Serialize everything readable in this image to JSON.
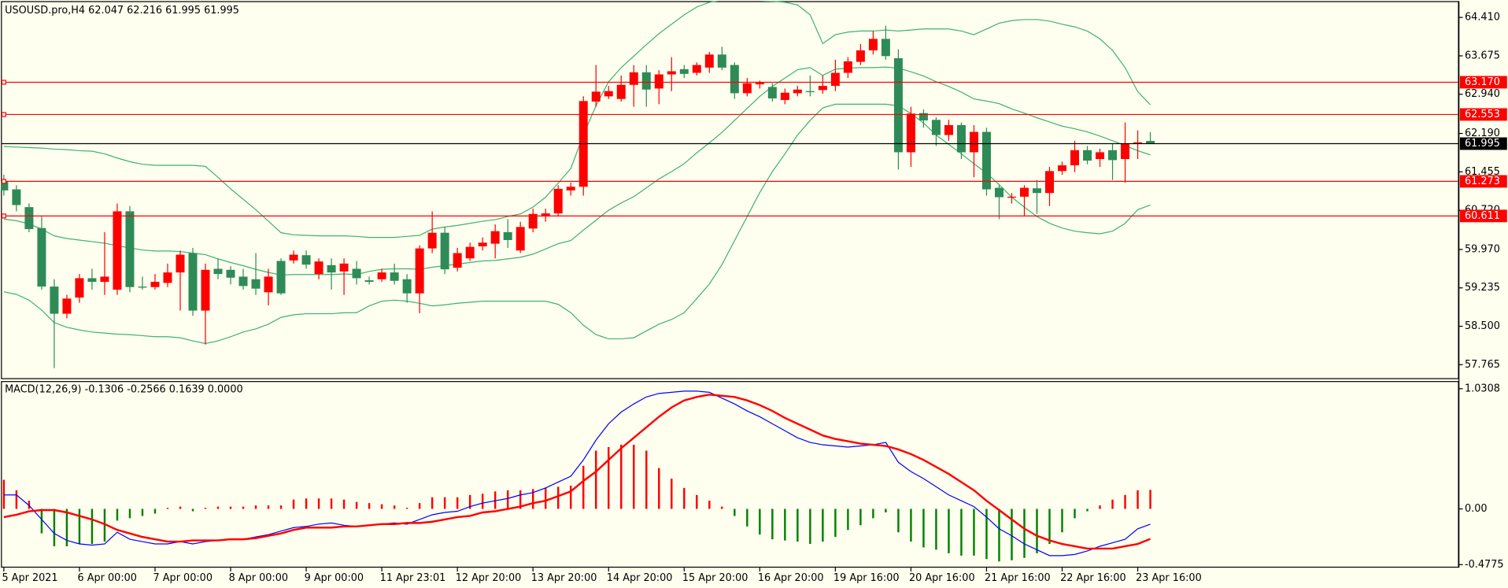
{
  "chart_data": [
    {
      "type": "candlestick",
      "title": "USOUSD.pro,H4  62.047 62.216 61.995 61.995",
      "up_color": "#ff0000",
      "down_color": "#2e8b57",
      "categories": [
        "5 Apr 2021",
        null,
        null,
        null,
        null,
        null,
        "6 Apr 00:00",
        null,
        null,
        null,
        null,
        null,
        "7 Apr 00:00",
        null,
        null,
        null,
        null,
        null,
        "8 Apr 00:00",
        null,
        null,
        null,
        null,
        null,
        "9 Apr 00:00",
        null,
        null,
        null,
        null,
        null,
        "11 Apr 23:01",
        null,
        null,
        null,
        null,
        null,
        "12 Apr 20:00",
        null,
        null,
        null,
        null,
        null,
        "13 Apr 20:00",
        null,
        null,
        null,
        null,
        null,
        "14 Apr 20:00",
        null,
        null,
        null,
        null,
        null,
        "15 Apr 20:00",
        null,
        null,
        null,
        null,
        null,
        "16 Apr 20:00",
        null,
        null,
        null,
        null,
        null,
        "19 Apr 16:00",
        null,
        null,
        null,
        null,
        null,
        "20 Apr 16:00",
        null,
        null,
        null,
        null,
        null,
        "21 Apr 16:00",
        null,
        null,
        null,
        null,
        null,
        "22 Apr 16:00",
        null,
        null,
        null,
        null,
        null,
        "23 Apr 16:00",
        null
      ],
      "open": [
        61.28,
        61.12,
        60.78,
        60.38,
        59.26,
        58.74,
        59.05,
        59.42,
        59.35,
        59.2,
        60.7,
        59.26,
        59.25,
        59.33,
        59.53,
        59.9,
        58.8,
        59.6,
        59.58,
        59.45,
        59.4,
        59.15,
        59.75,
        59.76,
        59.86,
        59.5,
        59.67,
        59.55,
        59.6,
        59.38,
        59.4,
        59.53,
        59.4,
        59.13,
        59.99,
        60.29,
        59.62,
        59.8,
        60.03,
        60.08,
        60.3,
        59.95,
        60.37,
        60.6,
        60.66,
        61.1,
        61.17,
        62.8,
        62.9,
        62.85,
        63.12,
        63.36,
        63.05,
        63.32,
        63.42,
        63.35,
        63.45,
        63.7,
        63.5,
        62.96,
        63.13,
        63.08,
        62.83,
        62.96,
        63.0,
        63.02,
        63.1,
        63.35,
        63.56,
        63.78,
        64.0,
        63.63,
        61.83,
        62.58,
        62.45,
        62.16,
        62.35,
        61.83,
        62.22,
        61.15,
        60.97,
        60.98,
        61.14,
        61.05,
        61.47,
        61.58,
        61.87,
        61.7,
        61.87,
        61.7,
        62.0,
        62.047
      ],
      "high": [
        61.4,
        61.2,
        60.85,
        60.6,
        59.4,
        59.1,
        59.5,
        59.6,
        60.3,
        60.85,
        60.8,
        59.45,
        59.5,
        59.7,
        59.95,
        60.0,
        59.7,
        59.8,
        59.65,
        59.6,
        59.9,
        59.6,
        59.8,
        59.95,
        59.95,
        59.8,
        59.8,
        59.8,
        59.75,
        59.45,
        59.6,
        59.7,
        59.5,
        60.05,
        60.7,
        60.4,
        60.0,
        60.1,
        60.2,
        60.45,
        60.55,
        60.5,
        60.75,
        60.75,
        61.2,
        61.25,
        62.9,
        63.5,
        63.1,
        63.3,
        63.5,
        63.5,
        63.4,
        63.65,
        63.5,
        63.55,
        63.75,
        63.85,
        63.55,
        63.25,
        63.2,
        63.15,
        63.05,
        63.1,
        63.3,
        63.3,
        63.6,
        63.65,
        63.9,
        64.15,
        64.25,
        63.8,
        62.7,
        62.65,
        62.5,
        62.45,
        62.4,
        62.35,
        62.3,
        61.2,
        61.05,
        61.2,
        61.3,
        61.55,
        61.65,
        62.05,
        61.95,
        61.9,
        62.0,
        62.4,
        62.25,
        62.216
      ],
      "low": [
        61.0,
        60.7,
        60.3,
        59.2,
        57.7,
        58.65,
        58.95,
        59.2,
        59.1,
        59.1,
        59.15,
        59.2,
        59.2,
        59.25,
        58.8,
        58.7,
        58.15,
        59.4,
        59.3,
        59.2,
        59.1,
        58.9,
        59.1,
        59.7,
        59.6,
        59.4,
        59.2,
        59.1,
        59.3,
        59.3,
        59.35,
        59.3,
        58.95,
        58.75,
        59.9,
        59.5,
        59.55,
        59.75,
        59.95,
        59.8,
        60.0,
        59.9,
        60.3,
        60.5,
        60.6,
        61.0,
        61.0,
        62.7,
        62.85,
        62.8,
        62.7,
        62.7,
        62.75,
        63.0,
        63.25,
        63.3,
        63.35,
        63.4,
        62.85,
        62.9,
        63.05,
        62.8,
        62.75,
        62.9,
        62.9,
        62.95,
        63.0,
        63.25,
        63.5,
        63.7,
        63.6,
        61.5,
        61.55,
        62.3,
        61.95,
        62.05,
        61.7,
        61.35,
        61.0,
        60.55,
        60.85,
        60.6,
        60.65,
        60.8,
        61.4,
        61.45,
        61.6,
        61.55,
        61.3,
        61.25,
        61.7,
        61.995
      ],
      "close": [
        61.1,
        60.82,
        60.36,
        59.26,
        58.74,
        59.03,
        59.42,
        59.35,
        59.45,
        60.7,
        59.25,
        59.24,
        59.35,
        59.53,
        59.87,
        58.8,
        59.58,
        59.5,
        59.43,
        59.27,
        59.22,
        59.45,
        59.13,
        59.87,
        59.68,
        59.74,
        59.53,
        59.7,
        59.42,
        59.35,
        59.53,
        59.37,
        59.13,
        59.99,
        60.29,
        59.59,
        59.9,
        60.02,
        60.1,
        60.32,
        60.15,
        60.4,
        60.65,
        60.66,
        61.13,
        61.17,
        62.81,
        62.99,
        63.0,
        63.12,
        63.36,
        63.03,
        63.32,
        63.38,
        63.33,
        63.5,
        63.7,
        63.45,
        62.96,
        63.15,
        63.16,
        62.86,
        62.97,
        63.03,
        62.98,
        63.1,
        63.35,
        63.57,
        63.78,
        64.0,
        63.67,
        61.83,
        62.57,
        62.44,
        62.16,
        62.35,
        61.83,
        62.22,
        61.12,
        60.97,
        60.98,
        61.15,
        61.05,
        61.47,
        61.58,
        61.87,
        61.67,
        61.83,
        61.68,
        61.99,
        62.02,
        61.995
      ],
      "overlays": [
        {
          "color": "#3cb371",
          "values": [
            61.94,
            61.93,
            61.92,
            61.91,
            61.89,
            61.88,
            61.86,
            61.85,
            61.8,
            61.72,
            61.65,
            61.6,
            61.58,
            61.58,
            61.58,
            61.58,
            61.56,
            61.35,
            61.13,
            60.93,
            60.73,
            60.51,
            60.29,
            60.25,
            60.24,
            60.23,
            60.23,
            60.23,
            60.22,
            60.2,
            60.2,
            60.2,
            60.22,
            60.24,
            60.36,
            60.4,
            60.43,
            60.47,
            60.51,
            60.54,
            60.6,
            60.65,
            60.78,
            60.97,
            61.24,
            61.52,
            62.16,
            62.72,
            63.18,
            63.45,
            63.67,
            63.89,
            64.1,
            64.28,
            64.46,
            64.61,
            64.7,
            64.74,
            64.74,
            64.74,
            64.73,
            64.72,
            64.7,
            64.65,
            64.46,
            63.91,
            64.08,
            64.13,
            64.15,
            64.15,
            64.17,
            64.15,
            64.17,
            64.19,
            64.19,
            64.19,
            64.15,
            64.08,
            64.19,
            64.3,
            64.35,
            64.37,
            64.37,
            64.34,
            64.28,
            64.23,
            64.15,
            64.0,
            63.78,
            63.45,
            62.99,
            62.74
          ]
        },
        {
          "color": "#3cb371",
          "values": [
            60.55,
            60.52,
            60.46,
            60.36,
            60.23,
            60.18,
            60.15,
            60.12,
            60.09,
            60.04,
            60.0,
            59.96,
            59.94,
            59.94,
            59.93,
            59.9,
            59.87,
            59.79,
            59.72,
            59.66,
            59.59,
            59.53,
            59.48,
            59.49,
            59.49,
            59.49,
            59.49,
            59.5,
            59.49,
            59.55,
            59.59,
            59.6,
            59.6,
            59.59,
            59.63,
            59.66,
            59.69,
            59.72,
            59.75,
            59.76,
            59.79,
            59.82,
            59.88,
            59.98,
            60.08,
            60.14,
            60.34,
            60.53,
            60.72,
            60.86,
            60.98,
            61.15,
            61.32,
            61.46,
            61.61,
            61.82,
            62.01,
            62.21,
            62.44,
            62.67,
            62.9,
            63.09,
            63.25,
            63.41,
            63.45,
            63.3,
            63.42,
            63.44,
            63.45,
            63.45,
            63.46,
            63.44,
            63.37,
            63.29,
            63.18,
            63.09,
            62.98,
            62.85,
            62.81,
            62.76,
            62.66,
            62.58,
            62.49,
            62.41,
            62.33,
            62.28,
            62.22,
            62.14,
            62.05,
            61.96,
            61.86,
            61.78
          ]
        },
        {
          "color": "#3cb371",
          "values": [
            59.16,
            59.11,
            59.0,
            58.81,
            58.57,
            58.48,
            58.43,
            58.39,
            58.37,
            58.35,
            58.34,
            58.32,
            58.3,
            58.3,
            58.28,
            58.22,
            58.17,
            58.22,
            58.3,
            58.39,
            58.45,
            58.54,
            58.67,
            58.72,
            58.74,
            58.74,
            58.74,
            58.76,
            58.76,
            58.89,
            58.98,
            59.0,
            58.98,
            58.94,
            58.89,
            58.91,
            58.94,
            58.96,
            58.98,
            58.98,
            58.98,
            58.98,
            58.98,
            58.98,
            58.92,
            58.76,
            58.52,
            58.34,
            58.26,
            58.26,
            58.28,
            58.41,
            58.54,
            58.63,
            58.76,
            59.03,
            59.31,
            59.68,
            60.14,
            60.6,
            61.06,
            61.46,
            61.8,
            62.16,
            62.44,
            62.68,
            62.75,
            62.75,
            62.75,
            62.75,
            62.75,
            62.72,
            62.57,
            62.39,
            62.16,
            61.98,
            61.8,
            61.61,
            61.43,
            61.21,
            60.97,
            60.78,
            60.6,
            60.47,
            60.38,
            60.32,
            60.29,
            60.27,
            60.32,
            60.47,
            60.73,
            60.82
          ]
        }
      ],
      "levels": [
        {
          "value": 63.17,
          "label": "63.170",
          "color": "#ff0000"
        },
        {
          "value": 62.553,
          "label": "62.553",
          "color": "#ff0000"
        },
        {
          "value": 61.273,
          "label": "61.273",
          "color": "#ff0000"
        },
        {
          "value": 60.611,
          "label": "60.611",
          "color": "#ff0000"
        }
      ],
      "last_price": 61.995,
      "last_price_color": "#000000",
      "ylim": [
        57.507,
        64.704
      ],
      "yticks": [
        {
          "value": 64.41,
          "label": "64.410"
        },
        {
          "value": 63.675,
          "label": "63.675"
        },
        {
          "value": 62.94,
          "label": "62.940"
        },
        {
          "value": 62.19,
          "label": "62.190"
        },
        {
          "value": 61.455,
          "label": "61.455"
        },
        {
          "value": 60.72,
          "label": "60.720"
        },
        {
          "value": 59.97,
          "label": "59.970"
        },
        {
          "value": 59.235,
          "label": "59.235"
        },
        {
          "value": 58.5,
          "label": "58.500"
        },
        {
          "value": 57.765,
          "label": "57.765"
        }
      ]
    },
    {
      "type": "macd",
      "title": "MACD(12,26,9) -0.1306 -0.2566 0.1639 0.0000",
      "up_color": "#ff0000",
      "down_color": "#008000",
      "values": [
        0.25,
        0.16,
        0.07,
        -0.21,
        -0.32,
        -0.32,
        -0.3,
        -0.3,
        -0.28,
        -0.1,
        -0.08,
        -0.06,
        -0.04,
        0.01,
        0.02,
        -0.02,
        0.01,
        0.02,
        0.02,
        0.02,
        0.03,
        0.03,
        0.03,
        0.08,
        0.09,
        0.09,
        0.09,
        0.08,
        0.06,
        0.05,
        0.04,
        0.03,
        0.01,
        0.05,
        0.1,
        0.1,
        0.1,
        0.12,
        0.13,
        0.15,
        0.16,
        0.16,
        0.17,
        0.18,
        0.19,
        0.2,
        0.37,
        0.5,
        0.53,
        0.55,
        0.55,
        0.5,
        0.35,
        0.26,
        0.18,
        0.12,
        0.07,
        0.02,
        -0.06,
        -0.15,
        -0.22,
        -0.26,
        -0.27,
        -0.28,
        -0.3,
        -0.28,
        -0.24,
        -0.18,
        -0.14,
        -0.08,
        -0.03,
        -0.2,
        -0.28,
        -0.33,
        -0.35,
        -0.38,
        -0.4,
        -0.4,
        -0.43,
        -0.45,
        -0.44,
        -0.42,
        -0.38,
        -0.3,
        -0.2,
        -0.08,
        -0.02,
        0.03,
        0.08,
        0.12,
        0.16,
        0.1639
      ],
      "lines": [
        {
          "color": "#0000ff",
          "width": 1,
          "values": [
            0.12,
            0.12,
            0.03,
            -0.09,
            -0.21,
            -0.27,
            -0.3,
            -0.31,
            -0.3,
            -0.2,
            -0.26,
            -0.28,
            -0.3,
            -0.3,
            -0.28,
            -0.3,
            -0.28,
            -0.27,
            -0.26,
            -0.26,
            -0.24,
            -0.22,
            -0.19,
            -0.16,
            -0.15,
            -0.13,
            -0.12,
            -0.14,
            -0.15,
            -0.14,
            -0.13,
            -0.12,
            -0.13,
            -0.09,
            -0.05,
            -0.03,
            -0.02,
            0.02,
            0.05,
            0.07,
            0.09,
            0.12,
            0.14,
            0.18,
            0.23,
            0.28,
            0.42,
            0.59,
            0.73,
            0.83,
            0.9,
            0.96,
            0.99,
            1.0,
            1.01,
            1.01,
            1.0,
            0.95,
            0.9,
            0.84,
            0.79,
            0.73,
            0.67,
            0.61,
            0.57,
            0.55,
            0.54,
            0.53,
            0.54,
            0.55,
            0.57,
            0.4,
            0.32,
            0.26,
            0.19,
            0.12,
            0.07,
            0.02,
            -0.07,
            -0.17,
            -0.23,
            -0.3,
            -0.35,
            -0.4,
            -0.4,
            -0.39,
            -0.36,
            -0.32,
            -0.29,
            -0.26,
            -0.17,
            -0.1306
          ]
        },
        {
          "color": "#ff0000",
          "width": 2,
          "values": [
            -0.07,
            -0.05,
            -0.02,
            -0.01,
            -0.01,
            -0.03,
            -0.06,
            -0.09,
            -0.13,
            -0.18,
            -0.21,
            -0.24,
            -0.26,
            -0.28,
            -0.28,
            -0.27,
            -0.27,
            -0.27,
            -0.26,
            -0.26,
            -0.25,
            -0.23,
            -0.21,
            -0.18,
            -0.16,
            -0.16,
            -0.16,
            -0.15,
            -0.15,
            -0.14,
            -0.13,
            -0.13,
            -0.12,
            -0.12,
            -0.11,
            -0.09,
            -0.07,
            -0.06,
            -0.03,
            -0.02,
            0.0,
            0.02,
            0.05,
            0.07,
            0.11,
            0.15,
            0.24,
            0.32,
            0.42,
            0.52,
            0.61,
            0.7,
            0.79,
            0.87,
            0.93,
            0.96,
            0.98,
            0.97,
            0.96,
            0.93,
            0.89,
            0.84,
            0.78,
            0.73,
            0.68,
            0.63,
            0.6,
            0.58,
            0.56,
            0.55,
            0.54,
            0.51,
            0.47,
            0.42,
            0.36,
            0.3,
            0.23,
            0.16,
            0.07,
            -0.01,
            -0.09,
            -0.17,
            -0.23,
            -0.27,
            -0.3,
            -0.32,
            -0.34,
            -0.34,
            -0.34,
            -0.32,
            -0.3,
            -0.2566
          ]
        }
      ],
      "ylim": [
        -0.495,
        1.088
      ],
      "yticks": [
        1.0308,
        {
          "value": 0,
          "label": "0.00"
        },
        -0.4775
      ]
    }
  ]
}
